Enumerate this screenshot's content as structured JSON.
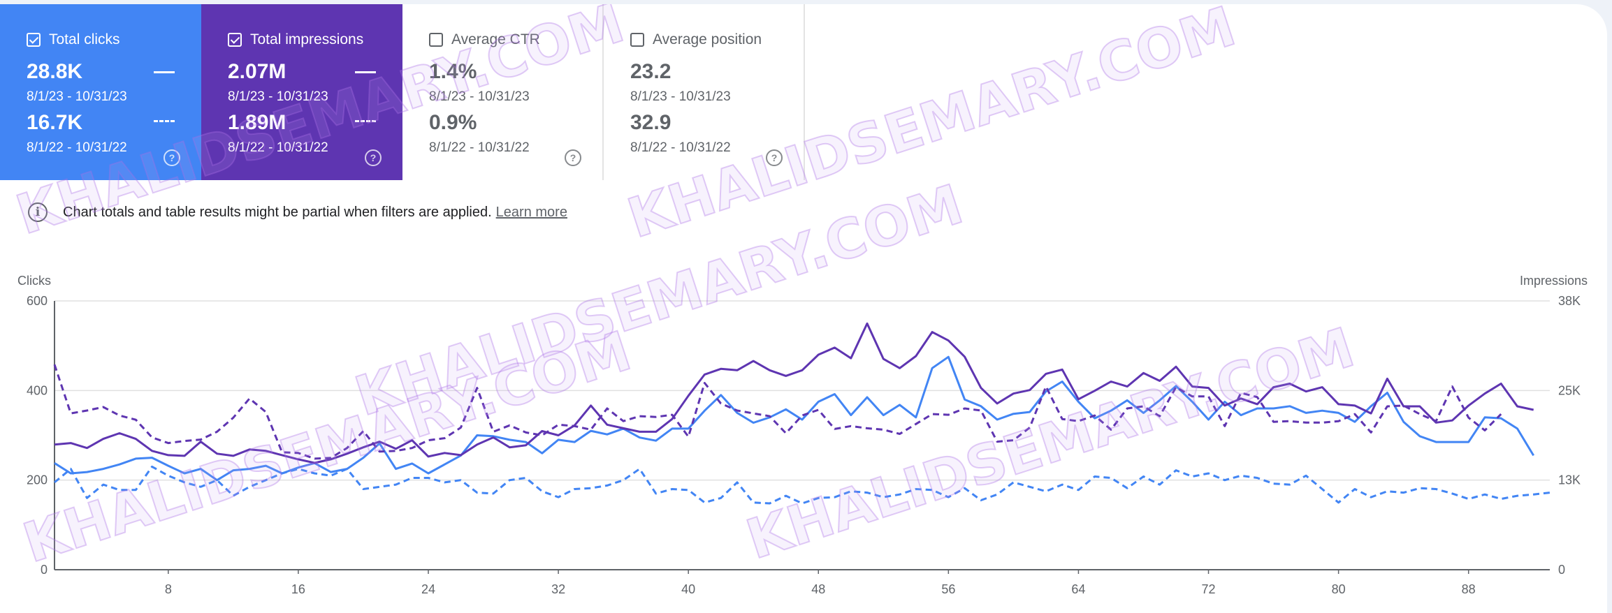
{
  "metrics": [
    {
      "label": "Total clicks",
      "checked": true,
      "current": "28.8K",
      "current_range": "8/1/23 - 10/31/23",
      "previous": "16.7K",
      "previous_range": "8/1/22 - 10/31/22",
      "color": "#4285f4"
    },
    {
      "label": "Total impressions",
      "checked": true,
      "current": "2.07M",
      "current_range": "8/1/23 - 10/31/23",
      "previous": "1.89M",
      "previous_range": "8/1/22 - 10/31/22",
      "color": "#5e35b1"
    },
    {
      "label": "Average CTR",
      "checked": false,
      "current": "1.4%",
      "current_range": "8/1/23 - 10/31/23",
      "previous": "0.9%",
      "previous_range": "8/1/22 - 10/31/22"
    },
    {
      "label": "Average position",
      "checked": false,
      "current": "23.2",
      "current_range": "8/1/23 - 10/31/23",
      "previous": "32.9",
      "previous_range": "8/1/22 - 10/31/22"
    }
  ],
  "notice": {
    "text": "Chart totals and table results might be partial when filters are applied.",
    "link": "Learn more"
  },
  "watermark": "KHALIDSEMARY.COM",
  "chart_data": {
    "type": "line",
    "y_left_label": "Clicks",
    "y_right_label": "Impressions",
    "y_left_ticks": [
      "0",
      "200",
      "400",
      "600"
    ],
    "y_right_ticks": [
      "0",
      "13K",
      "25K",
      "38K"
    ],
    "y_left_range": [
      0,
      600
    ],
    "y_right_range": [
      0,
      38000
    ],
    "x_ticks": [
      8,
      16,
      24,
      32,
      40,
      48,
      56,
      64,
      72,
      80,
      88
    ],
    "x_range": [
      1,
      93
    ],
    "grid": true,
    "series": [
      {
        "key": "clicks_current",
        "axis": "left",
        "color": "#4285f4",
        "dashed": false,
        "values": [
          238,
          215,
          218,
          225,
          235,
          248,
          250,
          232,
          215,
          225,
          200,
          222,
          225,
          232,
          215,
          228,
          238,
          218,
          225,
          250,
          282,
          225,
          237,
          215,
          235,
          255,
          300,
          298,
          290,
          285,
          260,
          290,
          285,
          310,
          302,
          315,
          295,
          288,
          315,
          315,
          355,
          390,
          350,
          328,
          340,
          358,
          335,
          375,
          392,
          345,
          385,
          345,
          368,
          340,
          450,
          475,
          380,
          365,
          335,
          348,
          352,
          398,
          420,
          375,
          338,
          355,
          378,
          350,
          378,
          410,
          375,
          335,
          375,
          345,
          360,
          360,
          365,
          350,
          355,
          350,
          330,
          365,
          395,
          330,
          298,
          285,
          285,
          285,
          340,
          338,
          315,
          255
        ]
      },
      {
        "key": "clicks_previous",
        "axis": "left",
        "color": "#4285f4",
        "dashed": true,
        "values": [
          195,
          225,
          160,
          190,
          178,
          178,
          230,
          210,
          195,
          185,
          200,
          165,
          185,
          200,
          215,
          225,
          215,
          210,
          225,
          180,
          185,
          190,
          205,
          205,
          195,
          200,
          172,
          170,
          200,
          205,
          175,
          162,
          180,
          182,
          188,
          200,
          225,
          170,
          180,
          178,
          150,
          160,
          195,
          150,
          148,
          165,
          148,
          160,
          162,
          175,
          172,
          162,
          168,
          180,
          178,
          162,
          182,
          155,
          168,
          195,
          185,
          175,
          190,
          178,
          208,
          205,
          182,
          208,
          190,
          222,
          208,
          215,
          200,
          210,
          205,
          192,
          190,
          210,
          180,
          150,
          180,
          162,
          175,
          172,
          182,
          180,
          170,
          158,
          168,
          158,
          165,
          168,
          172
        ]
      },
      {
        "key": "impressions_current",
        "axis": "right",
        "color": "#5e35b1",
        "dashed": false,
        "values": [
          17700,
          17900,
          17200,
          18500,
          19300,
          18500,
          16800,
          16200,
          16100,
          18100,
          16400,
          16100,
          17000,
          16800,
          16200,
          15600,
          15100,
          15600,
          16400,
          17300,
          18100,
          17100,
          18300,
          16000,
          16500,
          16200,
          17700,
          18700,
          17300,
          17600,
          19600,
          19000,
          20400,
          23200,
          20500,
          20000,
          19500,
          19500,
          21300,
          24600,
          27600,
          28400,
          28200,
          29500,
          28200,
          27400,
          28200,
          30400,
          31400,
          29900,
          34800,
          29800,
          28500,
          30200,
          33600,
          32400,
          30100,
          25700,
          23500,
          24900,
          25400,
          27700,
          28300,
          24100,
          25300,
          26600,
          25900,
          27800,
          26700,
          28700,
          25900,
          25700,
          23200,
          24200,
          23400,
          25800,
          26300,
          25200,
          25800,
          23400,
          23200,
          22100,
          27000,
          23100,
          23100,
          20800,
          21100,
          23200,
          24900,
          26300,
          23100,
          22600
        ]
      },
      {
        "key": "impressions_previous",
        "axis": "right",
        "color": "#5e35b1",
        "dashed": true,
        "values": [
          29000,
          22100,
          22500,
          23000,
          21800,
          21200,
          18700,
          17900,
          18200,
          18400,
          19500,
          21500,
          24200,
          22300,
          16600,
          16500,
          15700,
          15800,
          17200,
          19600,
          16700,
          16800,
          17200,
          18300,
          18600,
          20100,
          25700,
          19500,
          20400,
          19400,
          19000,
          20500,
          20300,
          19800,
          22800,
          21000,
          21700,
          21600,
          21900,
          18800,
          26400,
          23500,
          22500,
          22100,
          21700,
          19300,
          21800,
          22600,
          19900,
          20300,
          20000,
          19800,
          19200,
          20600,
          22000,
          21900,
          22800,
          22500,
          18100,
          18300,
          20100,
          25900,
          21300,
          21000,
          21800,
          19800,
          22800,
          23100,
          21700,
          25800,
          24500,
          24500,
          20300,
          25000,
          24400,
          20900,
          21000,
          20800,
          20800,
          21000,
          22000,
          19400,
          23100,
          23200,
          22000,
          21000,
          25900,
          21500,
          19700,
          22000
        ]
      }
    ]
  }
}
